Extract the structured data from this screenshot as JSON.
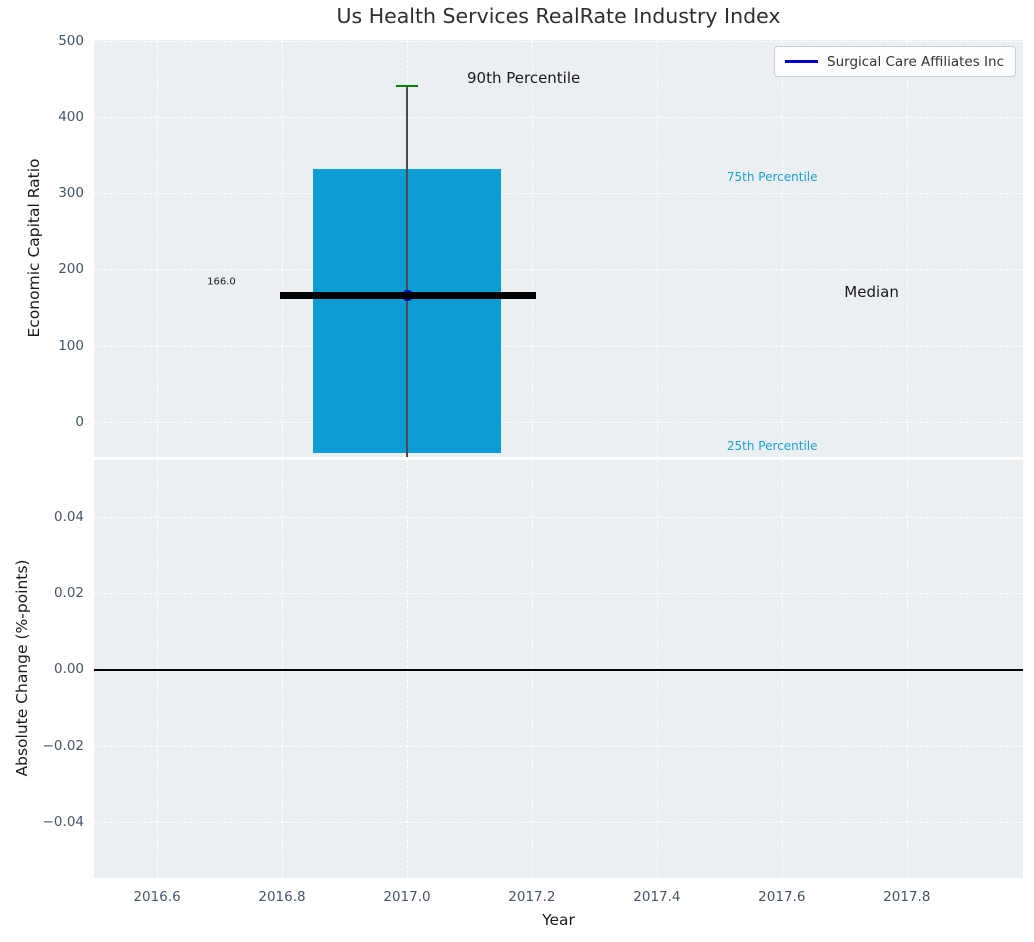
{
  "title": "Us Health Services RealRate Industry Index",
  "legend": {
    "label": "Surgical Care Affiliates Inc"
  },
  "x_axis": {
    "label": "Year",
    "tick_labels": [
      "2016.6",
      "2016.8",
      "2017.0",
      "2017.2",
      "2017.4",
      "2017.6",
      "2017.8"
    ],
    "tick_values": [
      2016.6,
      2016.8,
      2017.0,
      2017.2,
      2017.4,
      2017.6,
      2017.8
    ],
    "xlim": [
      2016.499,
      2017.986
    ]
  },
  "colors": {
    "bar": "#0a9cd3",
    "cyan_text": "#1ba0d6",
    "green_cap": "#008000",
    "whisker": "#4a4a4a",
    "median": "#000000",
    "company": "#0000cd",
    "panel_bg": "#eceff1",
    "grid": "#ffffff",
    "tick_text": "#44546b",
    "label_text": "#1a1a1a",
    "title_text": "#2e2e2e"
  },
  "chart_data": [
    {
      "type": "bar",
      "name": "economic-capital-ratio-panel",
      "ylabel": "Economic Capital Ratio",
      "ytick_labels": [
        "0",
        "100",
        "200",
        "300",
        "400",
        "500"
      ],
      "ytick_values": [
        0,
        100,
        200,
        300,
        400,
        500
      ],
      "ylim": [
        -46.5,
        501.3
      ],
      "grid": true,
      "legend_position": "upper right",
      "box": {
        "year": 2017.0,
        "bar_halfwidth_years": 0.15,
        "percentile_25": -41,
        "percentile_75": 332,
        "percentile_90": 441,
        "median": 166.0,
        "median_span_years": [
          2016.797,
          2017.207
        ],
        "company_value": 166.0,
        "company_year": 2017.0,
        "cap_halfwidth_years": 0.017
      },
      "annotations": [
        {
          "text": "90th Percentile",
          "year": 2017.096,
          "value": 452,
          "color_key": "label_text",
          "font_size": 15
        },
        {
          "text": "75th Percentile",
          "year": 2017.512,
          "value": 322,
          "color_key": "cyan_text",
          "font_size": 12
        },
        {
          "text": "Median",
          "year": 2017.7,
          "value": 170,
          "color_key": "label_text",
          "font_size": 15
        },
        {
          "text": "25th Percentile",
          "year": 2017.512,
          "value": -32,
          "color_key": "cyan_text",
          "font_size": 12
        },
        {
          "text": "166.0",
          "year": 2016.68,
          "value": 184,
          "color_key": "label_text",
          "font_size": 10
        }
      ]
    },
    {
      "type": "line",
      "name": "absolute-change-panel",
      "ylabel": "Absolute Change (%-points)",
      "ytick_labels": [
        "0.04",
        "0.02",
        "0.00",
        "−0.02",
        "−0.04"
      ],
      "ytick_values": [
        0.04,
        0.02,
        0.0,
        -0.02,
        -0.04
      ],
      "ylim": [
        -0.0546,
        0.0548
      ],
      "grid": true,
      "zero_line": 0.0,
      "series": []
    }
  ]
}
